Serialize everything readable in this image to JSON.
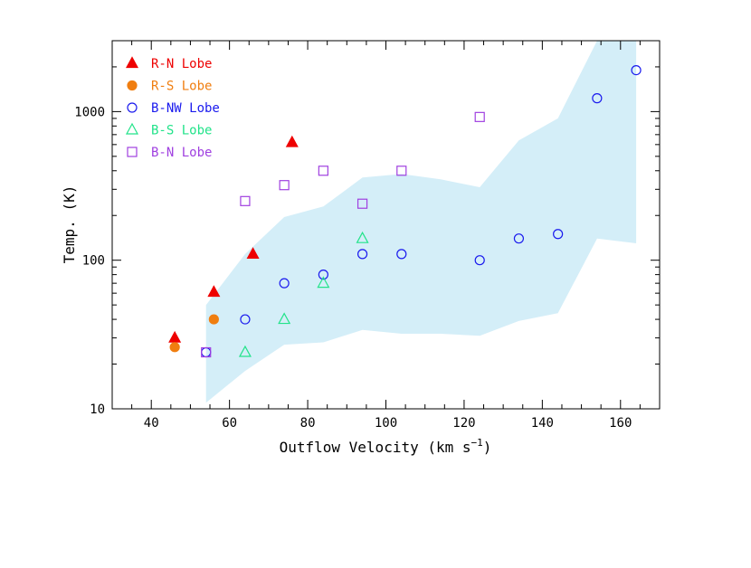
{
  "chart_data": {
    "type": "scatter",
    "title": "",
    "xlabel": "Outflow Velocity (km s",
    "xlabel_superscript": "−1",
    "xlabel_suffix": ")",
    "ylabel": "Temp. (K)",
    "xlim": [
      30,
      170
    ],
    "ylim": [
      10,
      3000
    ],
    "yscale": "log",
    "xticks": [
      40,
      60,
      80,
      100,
      120,
      140,
      160
    ],
    "xtick_labels": [
      "40",
      "60",
      "80",
      "100",
      "120",
      "140",
      "160"
    ],
    "yticks": [
      10,
      100,
      1000
    ],
    "ytick_labels": [
      "10",
      "100",
      "1000"
    ],
    "grid": false,
    "legend_position": "top-left",
    "band": {
      "color": "#d4eef8",
      "upper": [
        [
          54,
          50
        ],
        [
          64,
          110
        ],
        [
          74,
          195
        ],
        [
          84,
          230
        ],
        [
          94,
          360
        ],
        [
          104,
          380
        ],
        [
          114,
          350
        ],
        [
          124,
          310
        ],
        [
          134,
          640
        ],
        [
          144,
          900
        ],
        [
          154,
          3000
        ],
        [
          164,
          3000
        ]
      ],
      "lower": [
        [
          54,
          11
        ],
        [
          64,
          18
        ],
        [
          74,
          27
        ],
        [
          84,
          28
        ],
        [
          94,
          34
        ],
        [
          104,
          32
        ],
        [
          114,
          32
        ],
        [
          124,
          31
        ],
        [
          134,
          39
        ],
        [
          144,
          44
        ],
        [
          154,
          140
        ],
        [
          164,
          130
        ]
      ]
    },
    "series": [
      {
        "name": "R-N Lobe",
        "marker": "triangle-filled",
        "color": "#ee0000",
        "points": [
          [
            46,
            30
          ],
          [
            56,
            61
          ],
          [
            66,
            110
          ],
          [
            76,
            620
          ]
        ]
      },
      {
        "name": "R-S Lobe",
        "marker": "circle-filled",
        "color": "#f07e10",
        "points": [
          [
            46,
            26
          ],
          [
            56,
            40
          ]
        ]
      },
      {
        "name": "B-NW Lobe",
        "marker": "circle-open",
        "color": "#1a1aee",
        "points": [
          [
            54,
            24
          ],
          [
            64,
            40
          ],
          [
            74,
            70
          ],
          [
            84,
            80
          ],
          [
            94,
            110
          ],
          [
            104,
            110
          ],
          [
            124,
            100
          ],
          [
            134,
            140
          ],
          [
            144,
            150
          ],
          [
            154,
            1230
          ],
          [
            164,
            1900
          ]
        ]
      },
      {
        "name": "B-S Lobe",
        "marker": "triangle-open",
        "color": "#22e38a",
        "points": [
          [
            64,
            24
          ],
          [
            74,
            40
          ],
          [
            84,
            70
          ],
          [
            94,
            140
          ]
        ]
      },
      {
        "name": "B-N Lobe",
        "marker": "square-open",
        "color": "#a040e0",
        "points": [
          [
            54,
            24
          ],
          [
            64,
            250
          ],
          [
            74,
            320
          ],
          [
            84,
            400
          ],
          [
            94,
            240
          ],
          [
            104,
            400
          ],
          [
            124,
            920
          ]
        ]
      }
    ]
  }
}
